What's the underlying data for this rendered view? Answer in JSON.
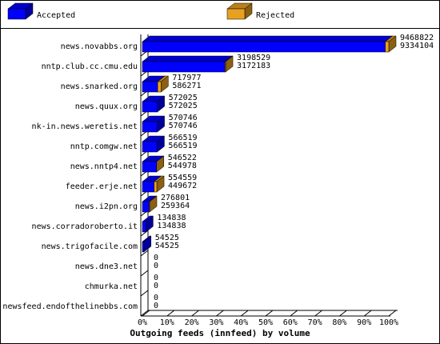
{
  "chart_data": {
    "type": "bar3d",
    "orientation": "horizontal",
    "stacked": true,
    "title": "Outgoing feeds (innfeed) by volume",
    "categories": [
      "news.novabbs.org",
      "nntp.club.cc.cmu.edu",
      "news.snarked.org",
      "news.quux.org",
      "nk-in.news.weretis.net",
      "nntp.comgw.net",
      "news.nntp4.net",
      "feeder.erje.net",
      "news.i2pn.org",
      "news.corradoroberto.it",
      "news.trigofacile.com",
      "news.dne3.net",
      "chmurka.net",
      "newsfeed.endofthelinebbs.com"
    ],
    "series": [
      {
        "name": "Accepted",
        "color": "#0000ff",
        "values": [
          9334104,
          3172183,
          586271,
          572025,
          570746,
          566519,
          544978,
          449672,
          259364,
          134838,
          54525,
          0,
          0,
          0
        ]
      },
      {
        "name": "Rejected",
        "color": "#e8a020",
        "values": [
          134718,
          26346,
          131706,
          0,
          0,
          0,
          1544,
          104887,
          17437,
          0,
          0,
          0,
          0,
          0
        ]
      }
    ],
    "totals": [
      9468822,
      3198529,
      717977,
      572025,
      570746,
      566519,
      546522,
      554559,
      276801,
      134838,
      54525,
      0,
      0,
      0
    ],
    "xlim": [
      0,
      9468822
    ],
    "xticks": [
      {
        "value": 0,
        "label": "0%"
      },
      {
        "value": 946882.2,
        "label": "10%"
      },
      {
        "value": 1893764.4,
        "label": "20%"
      },
      {
        "value": 2840646.6,
        "label": "30%"
      },
      {
        "value": 3787528.8,
        "label": "40%"
      },
      {
        "value": 4734411,
        "label": "50%"
      },
      {
        "value": 5681293.2,
        "label": "60%"
      },
      {
        "value": 6628175.4,
        "label": "70%"
      },
      {
        "value": 7575057.6,
        "label": "80%"
      },
      {
        "value": 8521939.8,
        "label": "90%"
      },
      {
        "value": 9468822,
        "label": "100%"
      }
    ]
  }
}
